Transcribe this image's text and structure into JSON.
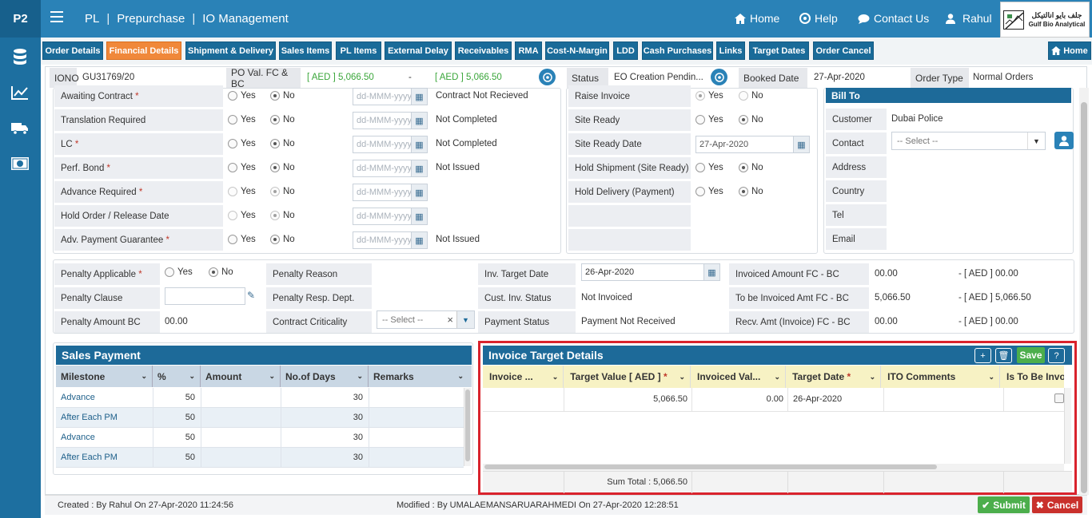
{
  "brand": "P2",
  "breadcrumb": [
    "PL",
    "Prepurchase",
    "IO Management"
  ],
  "topnav": {
    "home": "Home",
    "help": "Help",
    "contact": "Contact Us",
    "user": "Rahul"
  },
  "logo": {
    "arabic": "جلف بايو انالتيكل",
    "name": "Gulf Bio Analytical"
  },
  "tabs": [
    "Order Details",
    "Financial Details",
    "Shipment & Delivery",
    "Sales Items",
    "PL Items",
    "External Delay",
    "Receivables",
    "RMA",
    "Cost-N-Margin",
    "LDD",
    "Cash Purchases",
    "Links",
    "Target Dates",
    "Order Cancel"
  ],
  "home_tab": "Home",
  "header": {
    "iono_label": "IONO",
    "iono_value": "GU31769/20",
    "poval_label": "PO Val. FC & BC",
    "poval_fc": "[ AED ] 5,066.50",
    "poval_dash": "-",
    "poval_bc": "[ AED ] 5,066.50",
    "status_label": "Status",
    "status_value": "EO Creation Pendin...",
    "booked_label": "Booked Date",
    "booked_value": "27-Apr-2020",
    "ordertype_label": "Order Type",
    "ordertype_value": "Normal Orders"
  },
  "left_rows": [
    {
      "label": "Awaiting Contract",
      "req": "*",
      "yes": "Yes",
      "no": "No",
      "date": "dd-MMM-yyyy",
      "status": "Contract Not Recieved"
    },
    {
      "label": "Translation Required",
      "req": "",
      "yes": "Yes",
      "no": "No",
      "date": "dd-MMM-yyyy",
      "status": "Not Completed"
    },
    {
      "label": "LC",
      "req": "*",
      "yes": "Yes",
      "no": "No",
      "date": "dd-MMM-yyyy",
      "status": "Not Completed"
    },
    {
      "label": "Perf. Bond",
      "req": "*",
      "yes": "Yes",
      "no": "No",
      "date": "dd-MMM-yyyy",
      "status": "Not Issued"
    },
    {
      "label": "Advance Required",
      "req": "*",
      "yes": "Yes",
      "no": "No",
      "date": "dd-MMM-yyyy",
      "status": ""
    },
    {
      "label": "Hold Order / Release Date",
      "req": "",
      "yes": "Yes",
      "no": "No",
      "date": "dd-MMM-yyyy",
      "status": ""
    },
    {
      "label": "Adv. Payment Guarantee",
      "req": "*",
      "yes": "Yes",
      "no": "No",
      "date": "dd-MMM-yyyy",
      "status": "Not Issued"
    }
  ],
  "mid_rows": [
    {
      "label": "Raise Invoice",
      "yes": "Yes",
      "no": "No"
    },
    {
      "label": "Site Ready",
      "yes": "Yes",
      "no": "No"
    },
    {
      "label": "Site Ready Date",
      "date": "27-Apr-2020"
    },
    {
      "label": "Hold Shipment (Site Ready)",
      "yes": "Yes",
      "no": "No"
    },
    {
      "label": "Hold Delivery (Payment)",
      "yes": "Yes",
      "no": "No"
    }
  ],
  "billto": {
    "title": "Bill To",
    "customer_label": "Customer",
    "customer_value": "Dubai Police",
    "contact_label": "Contact",
    "contact_select": "-- Select --",
    "address_label": "Address",
    "country_label": "Country",
    "tel_label": "Tel",
    "email_label": "Email"
  },
  "penalty": {
    "applicable_label": "Penalty Applicable",
    "applicable_req": "*",
    "yes": "Yes",
    "no": "No",
    "clause_label": "Penalty Clause",
    "amount_label": "Penalty Amount BC",
    "amount_value": "00.00",
    "reason_label": "Penalty Reason",
    "resp_label": "Penalty Resp. Dept.",
    "criticality_label": "Contract Criticality",
    "criticality_select": "-- Select --",
    "inv_target_label": "Inv. Target Date",
    "inv_target_value": "26-Apr-2020",
    "cust_inv_label": "Cust. Inv. Status",
    "cust_inv_value": "Not Invoiced",
    "payment_label": "Payment Status",
    "payment_value": "Payment Not Received",
    "invoiced_label": "Invoiced Amount FC - BC",
    "invoiced_fc": "00.00",
    "invoiced_bc": "- [ AED ] 00.00",
    "tobe_label": "To be Invoiced Amt FC - BC",
    "tobe_fc": "5,066.50",
    "tobe_bc": "- [ AED ] 5,066.50",
    "recv_label": "Recv. Amt (Invoice) FC - BC",
    "recv_fc": "00.00",
    "recv_bc": "- [ AED ] 00.00"
  },
  "sales_payment": {
    "title": "Sales Payment",
    "columns": [
      "Milestone",
      "%",
      "Amount",
      "No.of Days",
      "Remarks"
    ],
    "rows": [
      {
        "milestone": "Advance",
        "pct": "50",
        "amount": "",
        "days": "30",
        "remarks": ""
      },
      {
        "milestone": "After Each PM",
        "pct": "50",
        "amount": "",
        "days": "30",
        "remarks": ""
      },
      {
        "milestone": "Advance",
        "pct": "50",
        "amount": "",
        "days": "30",
        "remarks": ""
      },
      {
        "milestone": "After Each PM",
        "pct": "50",
        "amount": "",
        "days": "30",
        "remarks": ""
      }
    ]
  },
  "invoice_target": {
    "title": "Invoice Target Details",
    "save": "Save",
    "columns": [
      "Invoice ...",
      "Target Value [ AED ]",
      "Invoiced Val...",
      "Target Date",
      "ITO Comments",
      "Is To Be Invo"
    ],
    "req": "*",
    "rows": [
      {
        "invoice": "",
        "target_value": "5,066.50",
        "invoiced": "0.00",
        "target_date": "26-Apr-2020",
        "comments": ""
      }
    ],
    "sum_total": "Sum Total : 5,066.50"
  },
  "footer": {
    "created": "Created : By Rahul On 27-Apr-2020 11:24:56",
    "modified": "Modified : By UMALAEMANSARUARAHMEDI On 27-Apr-2020 12:28:51",
    "submit": "Submit",
    "cancel": "Cancel"
  },
  "colors": {
    "primary": "#2a82b7",
    "tab": "#1a6b99",
    "active_tab": "#f0883a",
    "green": "#4cae4c",
    "red": "#c9302c",
    "highlight": "#d9232d"
  }
}
